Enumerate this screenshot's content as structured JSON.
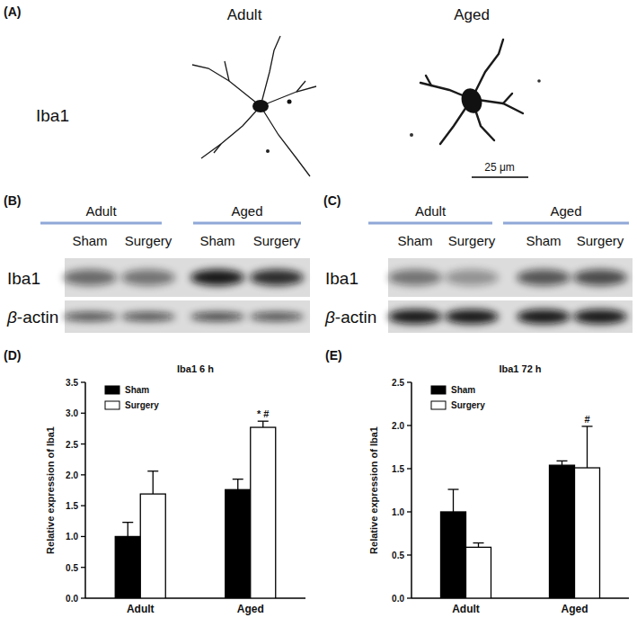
{
  "chart_data": [
    {
      "type": "bar",
      "title": "Iba1 6 h",
      "ylabel": "Relative expression of Iba1",
      "categories": [
        "Adult",
        "Aged"
      ],
      "series": [
        {
          "name": "Sham",
          "color": "#000000",
          "values": [
            1.0,
            1.76
          ],
          "errors": [
            0.23,
            0.17
          ],
          "annotations": [
            null,
            null
          ]
        },
        {
          "name": "Surgery",
          "color": "#ffffff",
          "values": [
            1.69,
            2.77
          ],
          "errors": [
            0.37,
            0.1
          ],
          "annotations": [
            null,
            "* #"
          ]
        }
      ],
      "ylim": [
        0,
        3.5
      ],
      "yticks": [
        {
          "value": 0,
          "label": "0.0"
        },
        {
          "value": 0.5,
          "label": "0.5"
        },
        {
          "value": 1,
          "label": "1.0"
        },
        {
          "value": 1.5,
          "label": "1.5"
        },
        {
          "value": 2,
          "label": "2.0"
        },
        {
          "value": 2.5,
          "label": "2.5"
        },
        {
          "value": 3,
          "label": "3.0"
        },
        {
          "value": 3.5,
          "label": "3.5"
        }
      ],
      "grid": false,
      "legend": "top-left"
    },
    {
      "type": "bar",
      "title": "Iba1 72 h",
      "ylabel": "Relative expression of Iba1",
      "categories": [
        "Adult",
        "Aged"
      ],
      "series": [
        {
          "name": "Sham",
          "color": "#000000",
          "values": [
            1.0,
            1.54
          ],
          "errors": [
            0.26,
            0.05
          ],
          "annotations": [
            null,
            null
          ]
        },
        {
          "name": "Surgery",
          "color": "#ffffff",
          "values": [
            0.59,
            1.51
          ],
          "errors": [
            0.05,
            0.48
          ],
          "annotations": [
            null,
            "#"
          ]
        }
      ],
      "ylim": [
        0,
        2.5
      ],
      "yticks": [
        {
          "value": 0,
          "label": "0.0"
        },
        {
          "value": 0.5,
          "label": "0.5"
        },
        {
          "value": 1,
          "label": "1.0"
        },
        {
          "value": 1.5,
          "label": "1.5"
        },
        {
          "value": 2,
          "label": "2.0"
        },
        {
          "value": 2.5,
          "label": "2.5"
        }
      ],
      "grid": false,
      "legend": "top-left"
    }
  ],
  "figure": {
    "panel_labels": [
      "(A)",
      "(B)",
      "(C)",
      "(D)",
      "(E)"
    ],
    "panel_a": {
      "columns": [
        "Adult",
        "Aged"
      ],
      "row_label": "Iba1",
      "scale_bar": "25 μm"
    },
    "panel_b": {
      "groups": [
        {
          "name": "Adult",
          "lanes": [
            "Sham",
            "Surgery"
          ]
        },
        {
          "name": "Aged",
          "lanes": [
            "Sham",
            "Surgery"
          ]
        }
      ],
      "rows": [
        "Iba1",
        "β-actin"
      ]
    },
    "panel_c": {
      "groups": [
        {
          "name": "Adult",
          "lanes": [
            "Sham",
            "Surgery"
          ]
        },
        {
          "name": "Aged",
          "lanes": [
            "Sham",
            "Surgery"
          ]
        }
      ],
      "rows": [
        "Iba1",
        "β-actin"
      ]
    }
  }
}
